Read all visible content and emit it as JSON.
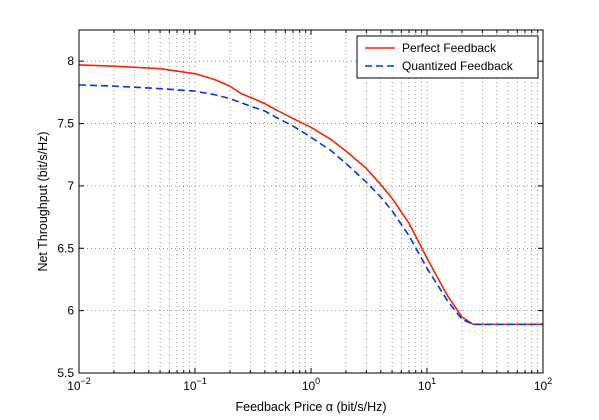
{
  "chart_data": {
    "type": "line",
    "xscale": "log",
    "xlabel": "Feedback Price α (bit/s/Hz)",
    "ylabel": "Net Throughput (bit/s/Hz)",
    "xlim": [
      0.01,
      100
    ],
    "ylim": [
      5.5,
      8.25
    ],
    "x_ticks": [
      0.01,
      0.1,
      1,
      10,
      100
    ],
    "x_tick_labels": [
      {
        "base": "10",
        "exp": "−2"
      },
      {
        "base": "10",
        "exp": "−1"
      },
      {
        "base": "10",
        "exp": "0"
      },
      {
        "base": "10",
        "exp": "1"
      },
      {
        "base": "10",
        "exp": "2"
      }
    ],
    "y_ticks": [
      5.5,
      6,
      6.5,
      7,
      7.5,
      8
    ],
    "y_tick_labels": [
      "5.5",
      "6",
      "6.5",
      "7",
      "7.5",
      "8"
    ],
    "grid": true,
    "legend": "top-right",
    "series": [
      {
        "name": "Perfect Feedback",
        "color": "#ff2200",
        "dash": "solid",
        "x": [
          0.01,
          0.02,
          0.05,
          0.1,
          0.15,
          0.2,
          0.25,
          0.3,
          0.4,
          0.5,
          0.7,
          1,
          1.5,
          2,
          3,
          4,
          5,
          7,
          10,
          15,
          20,
          25,
          30,
          50,
          100
        ],
        "y": [
          7.97,
          7.96,
          7.94,
          7.9,
          7.85,
          7.8,
          7.74,
          7.71,
          7.66,
          7.61,
          7.54,
          7.47,
          7.37,
          7.28,
          7.14,
          7.01,
          6.9,
          6.7,
          6.42,
          6.12,
          5.95,
          5.89,
          5.89,
          5.89,
          5.89
        ]
      },
      {
        "name": "Quantized Feedback",
        "color": "#0033ff",
        "dash": "dashed",
        "x": [
          0.01,
          0.02,
          0.05,
          0.1,
          0.15,
          0.2,
          0.3,
          0.4,
          0.5,
          0.7,
          1,
          1.5,
          2,
          3,
          4,
          5,
          7,
          10,
          15,
          20,
          25,
          30,
          50,
          100
        ],
        "y": [
          7.81,
          7.8,
          7.78,
          7.76,
          7.73,
          7.7,
          7.64,
          7.6,
          7.55,
          7.48,
          7.39,
          7.28,
          7.18,
          7.03,
          6.91,
          6.8,
          6.6,
          6.34,
          6.08,
          5.93,
          5.89,
          5.89,
          5.89,
          5.89
        ]
      }
    ]
  }
}
